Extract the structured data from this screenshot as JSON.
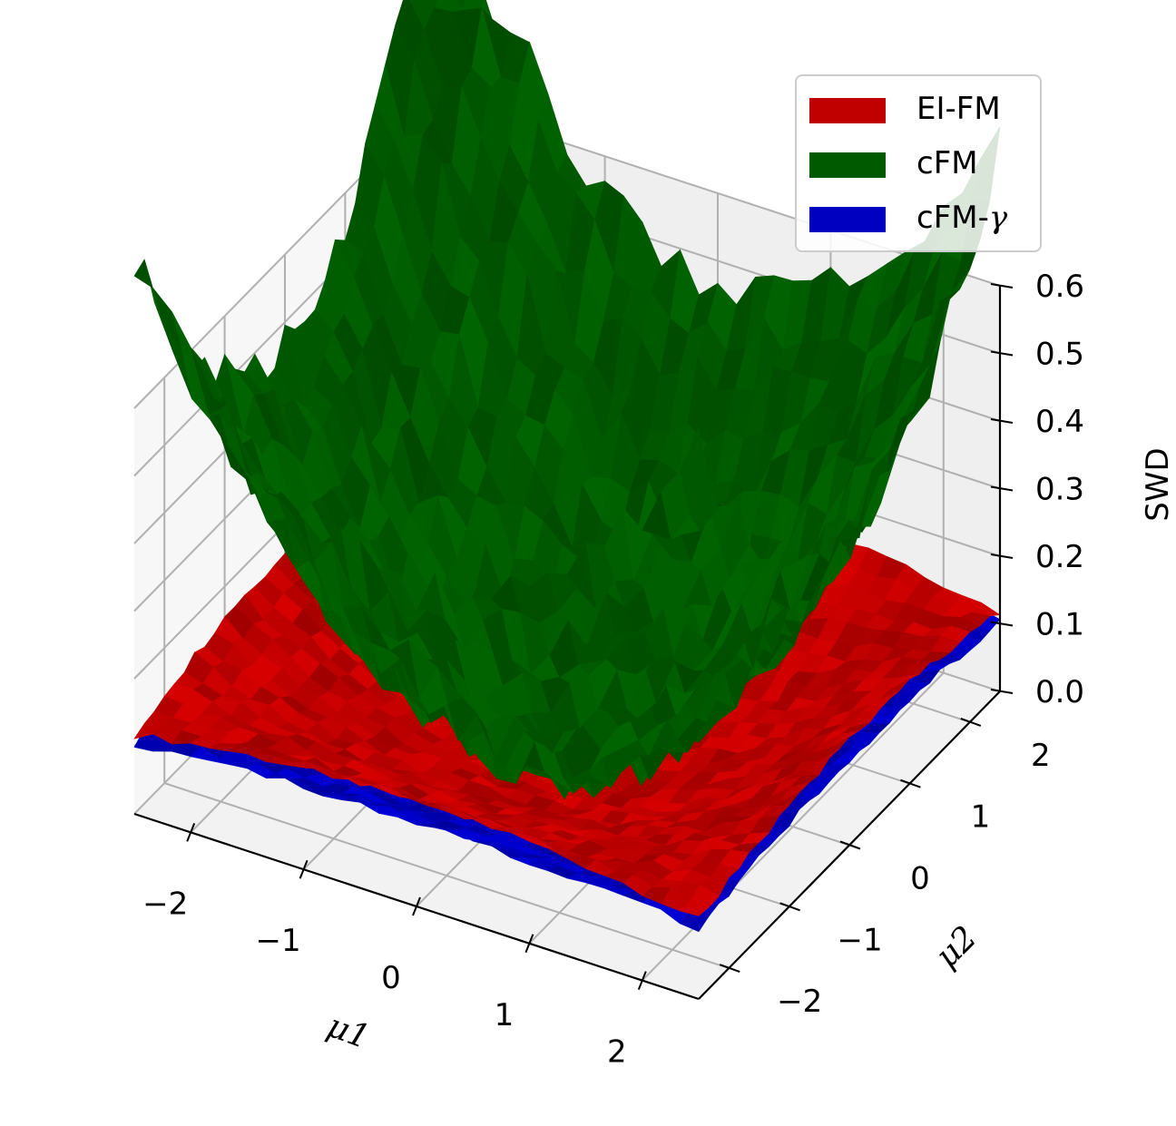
{
  "chart_data": {
    "type": "surface3d",
    "title": "",
    "xlabel": "μ1",
    "ylabel": "μ2",
    "zlabel": "SWD",
    "xlim": [
      -2.5,
      2.5
    ],
    "ylim": [
      -2.5,
      2.5
    ],
    "zlim": [
      0.0,
      0.6
    ],
    "xticks": [
      "−2",
      "−1",
      "0",
      "1",
      "2"
    ],
    "yticks": [
      "−2",
      "−1",
      "0",
      "1",
      "2"
    ],
    "zticks": [
      "0.0",
      "0.1",
      "0.2",
      "0.3",
      "0.4",
      "0.5",
      "0.6"
    ],
    "grid": true,
    "legend_position": "top-right",
    "series": [
      {
        "name": "EI-FM",
        "legend_text": "EI-FM",
        "color": "#c00000",
        "surface": "bowl",
        "center_z": 0.0,
        "edge_z": 0.1,
        "corner_z": 0.12
      },
      {
        "name": "cFM",
        "legend_text": "cFM",
        "color": "#005a00",
        "surface": "bowl",
        "center_z": 0.0,
        "edge_z": 0.3,
        "corner_z": 0.55
      },
      {
        "name": "cFM-γ",
        "legend_text": "cFM-",
        "legend_symbol": "γ",
        "color": "#0000c0",
        "surface": "bowl",
        "center_z": 0.0,
        "edge_z": 0.08,
        "corner_z": 0.1
      }
    ]
  }
}
